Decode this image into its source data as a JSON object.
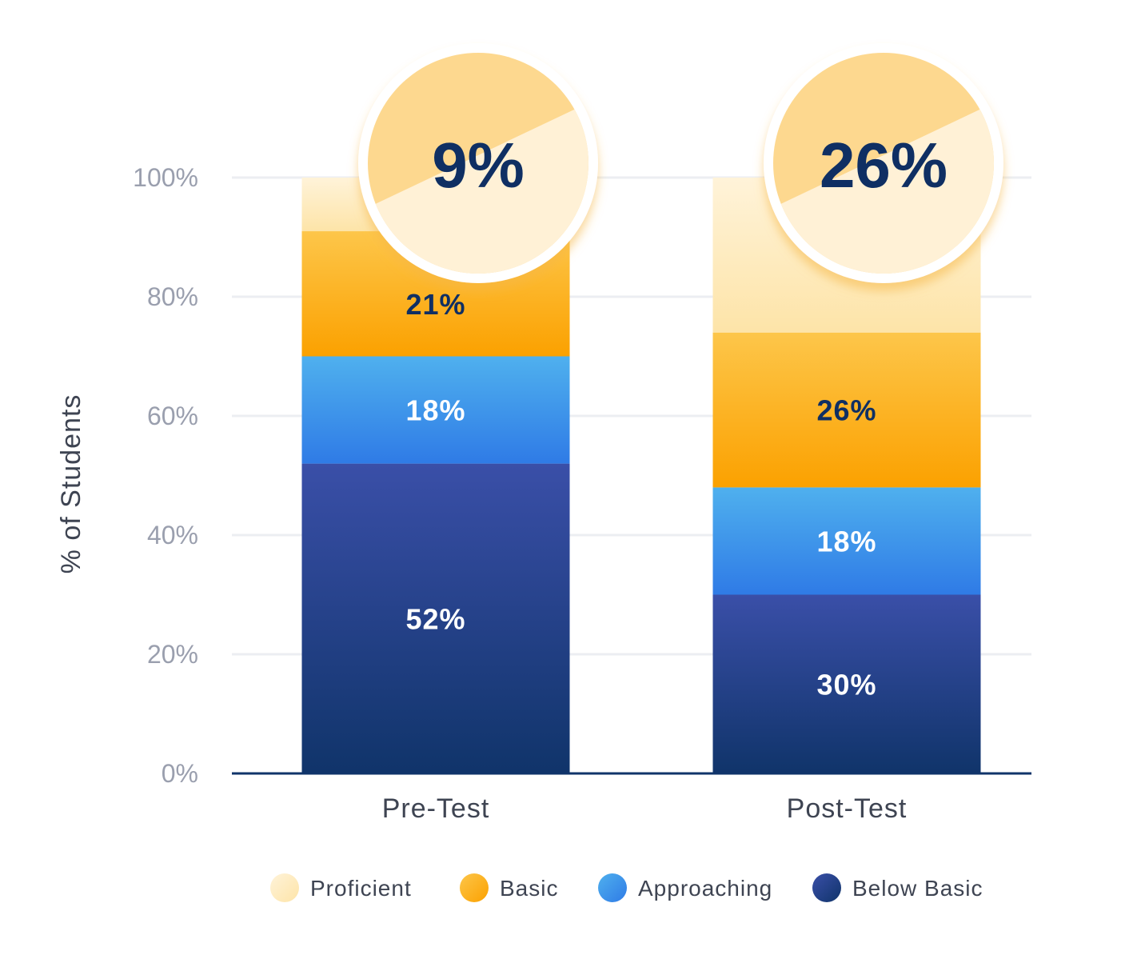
{
  "chart_data": {
    "type": "bar",
    "stacked": true,
    "title": "",
    "xlabel": "",
    "ylabel": "% of Students",
    "ylim": [
      0,
      100
    ],
    "y_ticks": [
      "0%",
      "20%",
      "40%",
      "60%",
      "80%",
      "100%"
    ],
    "categories": [
      "Pre-Test",
      "Post-Test"
    ],
    "series": [
      {
        "name": "Below Basic",
        "values": [
          52,
          30
        ],
        "labels": [
          "52%",
          "30%"
        ],
        "color_top": "#3a4fa8",
        "color_bottom": "#10346a",
        "label_color": "#ffffff"
      },
      {
        "name": "Approaching",
        "values": [
          18,
          18
        ],
        "labels": [
          "18%",
          "18%"
        ],
        "color_top": "#4fb0ee",
        "color_bottom": "#2f7be6",
        "label_color": "#ffffff"
      },
      {
        "name": "Basic",
        "values": [
          21,
          26
        ],
        "labels": [
          "21%",
          "26%"
        ],
        "color_top": "#fdc64a",
        "color_bottom": "#fba100",
        "label_color": "#0f2f63"
      },
      {
        "name": "Proficient",
        "values": [
          9,
          26
        ],
        "labels": [
          "9%",
          "26%"
        ],
        "color_top": "#fff3d9",
        "color_bottom": "#fde4a8",
        "label_color": "#0f2f63"
      }
    ],
    "highlight": {
      "series": "Proficient",
      "labels": [
        "9%",
        "26%"
      ]
    },
    "grid": true,
    "legend": {
      "position": "bottom",
      "items": [
        {
          "name": "Proficient",
          "color": "#fde4a8"
        },
        {
          "name": "Basic",
          "color": "#fba100"
        },
        {
          "name": "Approaching",
          "color": "#2f7be6"
        },
        {
          "name": "Below Basic",
          "color": "#10346a"
        }
      ]
    }
  }
}
